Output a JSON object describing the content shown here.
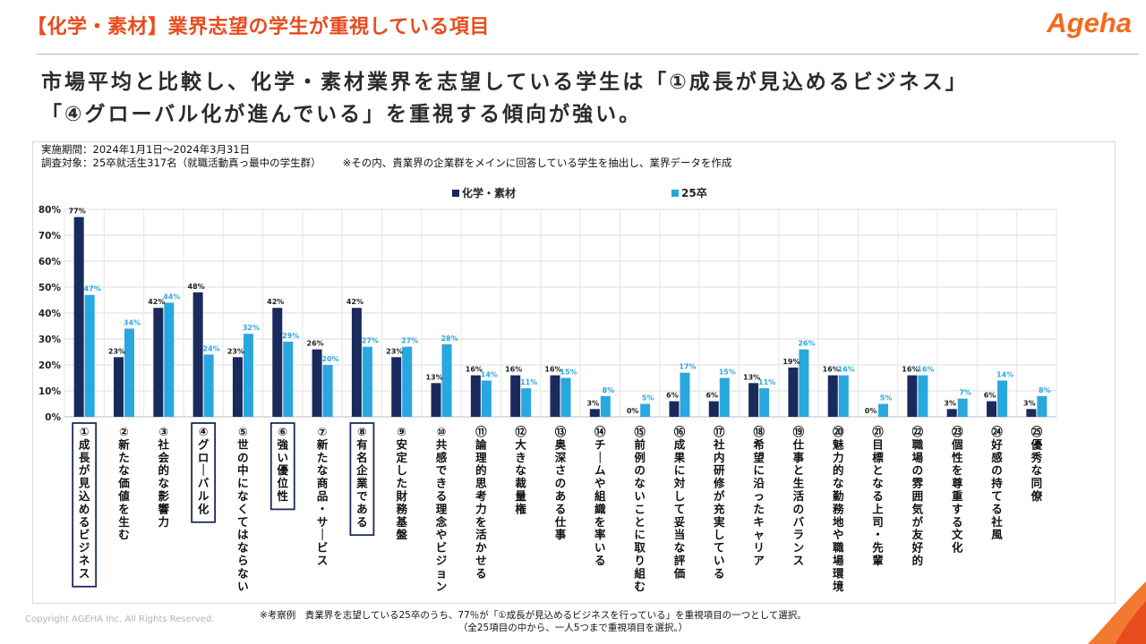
{
  "header": {
    "title": "【化学・素材】業界志望の学生が重視している項目",
    "logo": "Ageha"
  },
  "headline": {
    "line1": "市場平均と比較し、化学・素材業界を志望している学生は「①成長が見込めるビジネス」",
    "line2": "「④グローバル化が進んでいる」を重視する傾向が強い。"
  },
  "meta": {
    "period": "実施期間：2024年1月1日～2024年3月31日",
    "target": "調査対象：25卒就活生317名（就職活動真っ最中の学生群）",
    "note": "※その内、貴業界の企業群をメインに回答している学生を抽出し、業界データを作成"
  },
  "footer": {
    "copyright": "Copyright AGEHA Inc. All Rights Reserved.",
    "note_line1": "※考察例　貴業界を志望している25卒のうち、77％が「①成長が見込めるビジネスを行っている」を重視項目の一つとして選択。",
    "note_line2": "（全25項目の中から、一人5つまで重視項目を選択。）"
  },
  "colors": {
    "accent": "#e84c1e",
    "series1": "#1b2a5c",
    "series2": "#29a8e0"
  },
  "chart_data": {
    "type": "bar",
    "ylim": [
      0,
      80
    ],
    "yticks": [
      "0%",
      "10%",
      "20%",
      "30%",
      "40%",
      "50%",
      "60%",
      "70%",
      "80%"
    ],
    "grid": true,
    "legend_position": "top-center",
    "categories": [
      "①成長が見込めるビジネス",
      "②新たな価値を生む",
      "③社会的な影響力",
      "④グローバル化",
      "⑤世の中になくてはならない",
      "⑥強い優位性",
      "⑦新たな商品・サービス",
      "⑧有名企業である",
      "⑨安定した財務基盤",
      "⑩共感できる理念やビジョン",
      "⑪論理的思考力を活かせる",
      "⑫大きな裁量権",
      "⑬奥深さのある仕事",
      "⑭チームや組織を率いる",
      "⑮前例のないことに取り組む",
      "⑯成果に対して妥当な評価",
      "⑰社内研修が充実している",
      "⑱希望に沿ったキャリア",
      "⑲仕事と生活のバランス",
      "⑳魅力的な勤務地や職場環境",
      "㉑目標となる上司・先輩",
      "㉒職場の雰囲気が友好的",
      "㉓個性を尊重する文化",
      "㉔好感の持てる社風",
      "㉕優秀な同僚"
    ],
    "highlighted": [
      0,
      3,
      5,
      7
    ],
    "series": [
      {
        "name": "化学・素材",
        "values": [
          77,
          23,
          42,
          48,
          23,
          42,
          26,
          42,
          23,
          13,
          16,
          16,
          16,
          3,
          0,
          6,
          6,
          13,
          19,
          16,
          0,
          16,
          3,
          6,
          3
        ],
        "labels": [
          "77%",
          "23%",
          "42%",
          "48%",
          "23%",
          "42%",
          "26%",
          "42%",
          "23%",
          "13%",
          "16%",
          "16%",
          "16%",
          "3%",
          "0%",
          "6%",
          "6%",
          "13%",
          "19%",
          "16%",
          "0%",
          "16%",
          "3%",
          "6%",
          "3%"
        ]
      },
      {
        "name": "25卒",
        "values": [
          47,
          34,
          44,
          24,
          32,
          29,
          20,
          27,
          27,
          28,
          14,
          11,
          15,
          8,
          5,
          17,
          15,
          11,
          26,
          16,
          5,
          16,
          7,
          14,
          8
        ],
        "labels": [
          "47%",
          "34%",
          "44%",
          "24%",
          "32%",
          "29%",
          "20%",
          "27%",
          "27%",
          "28%",
          "14%",
          "11%",
          "15%",
          "8%",
          "5%",
          "17%",
          "15%",
          "11%",
          "26%",
          "16%",
          "5%",
          "16%",
          "7%",
          "14%",
          "8%"
        ]
      }
    ]
  }
}
